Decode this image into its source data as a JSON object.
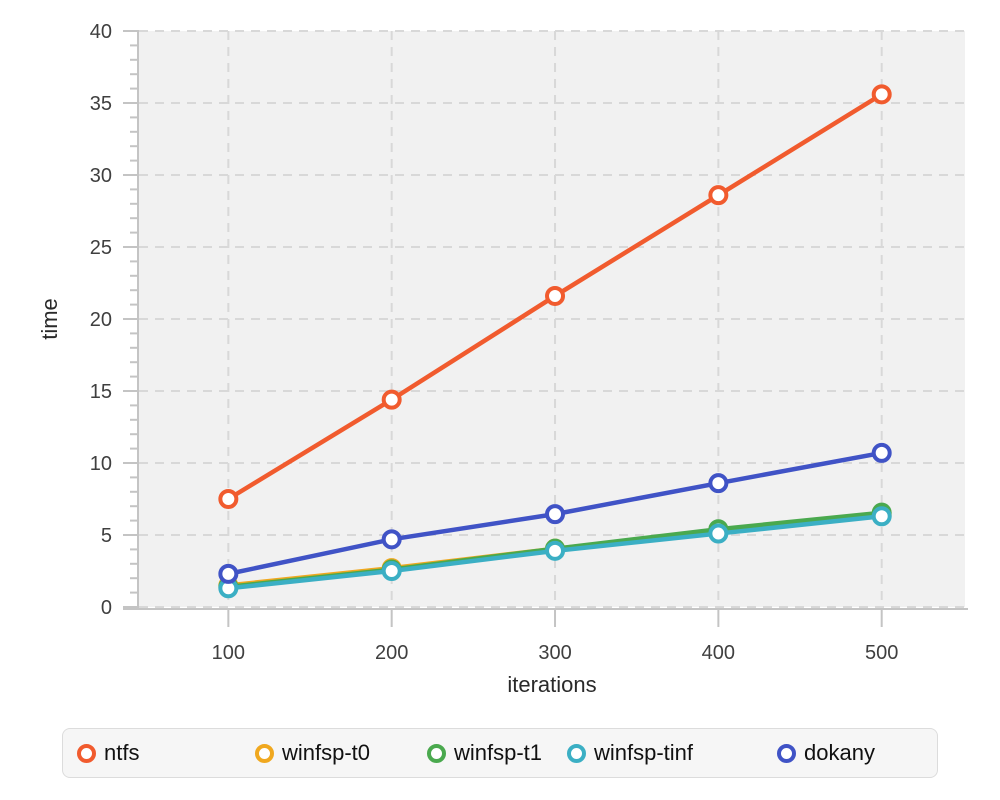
{
  "chart_data": {
    "type": "line",
    "title": "",
    "xlabel": "iterations",
    "ylabel": "time",
    "x": [
      100,
      200,
      300,
      400,
      500
    ],
    "xlim": [
      45.3,
      551
    ],
    "ylim": [
      0,
      40
    ],
    "x_ticks": [
      100,
      200,
      300,
      400,
      500
    ],
    "y_ticks": [
      0,
      5,
      10,
      15,
      20,
      25,
      30,
      35,
      40
    ],
    "y_minor_tick_step": 1,
    "grid": true,
    "legend_position": "bottom",
    "series": [
      {
        "name": "ntfs",
        "color": "#f15b2e",
        "values": [
          7.5,
          14.4,
          21.6,
          28.6,
          35.6
        ]
      },
      {
        "name": "winfsp-t0",
        "color": "#f0a81f",
        "values": [
          1.5,
          2.7,
          4.05,
          5.25,
          6.4
        ]
      },
      {
        "name": "winfsp-t1",
        "color": "#4aa94e",
        "values": [
          1.4,
          2.6,
          4.05,
          5.4,
          6.55
        ]
      },
      {
        "name": "winfsp-tinf",
        "color": "#3bafc4",
        "values": [
          1.3,
          2.5,
          3.9,
          5.1,
          6.3
        ]
      },
      {
        "name": "dokany",
        "color": "#4053c6",
        "values": [
          2.3,
          4.7,
          6.45,
          8.6,
          10.7
        ]
      }
    ]
  },
  "style": {
    "plot_bg": "#f1f1f1",
    "grid_color": "#d8d8d8",
    "axis_color": "#c4c4c4",
    "tick_label_color": "#3f3f3f",
    "axis_title_color": "#2a2a2a",
    "marker_fill": "#ffffff"
  }
}
